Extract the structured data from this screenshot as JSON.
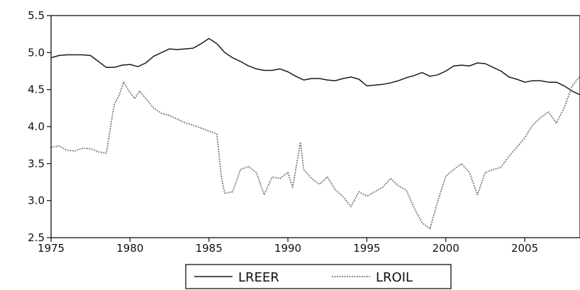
{
  "chart_data": {
    "type": "line",
    "title": "",
    "xlabel": "",
    "ylabel": "",
    "xlim": [
      1975,
      2008.5
    ],
    "ylim": [
      2.5,
      5.5
    ],
    "x_ticks": [
      "1975",
      "1980",
      "1985",
      "1990",
      "1995",
      "2000",
      "2005"
    ],
    "y_ticks": [
      "2.5",
      "3.0",
      "3.5",
      "4.0",
      "4.5",
      "5.0",
      "5.5"
    ],
    "grid": false,
    "legend": "bottom-center",
    "series": [
      {
        "name": "LREER",
        "style": "solid",
        "color": "#1a1a1a",
        "points": [
          [
            1975.0,
            4.93
          ],
          [
            1975.5,
            4.96
          ],
          [
            1976.0,
            4.97
          ],
          [
            1976.5,
            4.97
          ],
          [
            1977.0,
            4.97
          ],
          [
            1977.5,
            4.96
          ],
          [
            1978.0,
            4.88
          ],
          [
            1978.5,
            4.8
          ],
          [
            1979.0,
            4.8
          ],
          [
            1979.5,
            4.83
          ],
          [
            1980.0,
            4.84
          ],
          [
            1980.5,
            4.81
          ],
          [
            1981.0,
            4.86
          ],
          [
            1981.5,
            4.95
          ],
          [
            1982.0,
            5.0
          ],
          [
            1982.5,
            5.05
          ],
          [
            1983.0,
            5.04
          ],
          [
            1983.5,
            5.05
          ],
          [
            1984.0,
            5.06
          ],
          [
            1984.5,
            5.12
          ],
          [
            1985.0,
            5.19
          ],
          [
            1985.5,
            5.12
          ],
          [
            1986.0,
            5.0
          ],
          [
            1986.5,
            4.93
          ],
          [
            1987.0,
            4.88
          ],
          [
            1987.5,
            4.82
          ],
          [
            1988.0,
            4.78
          ],
          [
            1988.5,
            4.76
          ],
          [
            1989.0,
            4.76
          ],
          [
            1989.5,
            4.78
          ],
          [
            1990.0,
            4.74
          ],
          [
            1990.5,
            4.68
          ],
          [
            1991.0,
            4.63
          ],
          [
            1991.5,
            4.65
          ],
          [
            1992.0,
            4.65
          ],
          [
            1992.5,
            4.63
          ],
          [
            1993.0,
            4.62
          ],
          [
            1993.5,
            4.65
          ],
          [
            1994.0,
            4.67
          ],
          [
            1994.5,
            4.64
          ],
          [
            1995.0,
            4.55
          ],
          [
            1995.5,
            4.56
          ],
          [
            1996.0,
            4.57
          ],
          [
            1996.5,
            4.59
          ],
          [
            1997.0,
            4.62
          ],
          [
            1997.5,
            4.66
          ],
          [
            1998.0,
            4.69
          ],
          [
            1998.5,
            4.73
          ],
          [
            1999.0,
            4.68
          ],
          [
            1999.5,
            4.7
          ],
          [
            2000.0,
            4.75
          ],
          [
            2000.5,
            4.82
          ],
          [
            2001.0,
            4.83
          ],
          [
            2001.5,
            4.82
          ],
          [
            2002.0,
            4.86
          ],
          [
            2002.5,
            4.85
          ],
          [
            2003.0,
            4.8
          ],
          [
            2003.5,
            4.75
          ],
          [
            2004.0,
            4.67
          ],
          [
            2004.5,
            4.64
          ],
          [
            2005.0,
            4.6
          ],
          [
            2005.5,
            4.62
          ],
          [
            2006.0,
            4.62
          ],
          [
            2006.5,
            4.6
          ],
          [
            2007.0,
            4.6
          ],
          [
            2007.5,
            4.55
          ],
          [
            2008.0,
            4.48
          ],
          [
            2008.5,
            4.43
          ]
        ]
      },
      {
        "name": "LROIL",
        "style": "dotted",
        "color": "#7a7a7a",
        "points": [
          [
            1975.0,
            3.72
          ],
          [
            1975.5,
            3.74
          ],
          [
            1976.0,
            3.68
          ],
          [
            1976.5,
            3.67
          ],
          [
            1977.0,
            3.71
          ],
          [
            1977.5,
            3.7
          ],
          [
            1978.0,
            3.66
          ],
          [
            1978.5,
            3.64
          ],
          [
            1979.0,
            4.3
          ],
          [
            1979.3,
            4.42
          ],
          [
            1979.6,
            4.6
          ],
          [
            1980.0,
            4.46
          ],
          [
            1980.3,
            4.38
          ],
          [
            1980.6,
            4.48
          ],
          [
            1981.0,
            4.38
          ],
          [
            1981.5,
            4.25
          ],
          [
            1982.0,
            4.18
          ],
          [
            1982.5,
            4.15
          ],
          [
            1983.0,
            4.1
          ],
          [
            1983.5,
            4.05
          ],
          [
            1984.0,
            4.02
          ],
          [
            1984.5,
            3.98
          ],
          [
            1985.0,
            3.94
          ],
          [
            1985.5,
            3.9
          ],
          [
            1985.8,
            3.3
          ],
          [
            1986.0,
            3.1
          ],
          [
            1986.5,
            3.12
          ],
          [
            1987.0,
            3.42
          ],
          [
            1987.5,
            3.46
          ],
          [
            1988.0,
            3.38
          ],
          [
            1988.5,
            3.08
          ],
          [
            1989.0,
            3.32
          ],
          [
            1989.5,
            3.3
          ],
          [
            1990.0,
            3.38
          ],
          [
            1990.3,
            3.18
          ],
          [
            1990.8,
            3.79
          ],
          [
            1991.0,
            3.42
          ],
          [
            1991.5,
            3.3
          ],
          [
            1992.0,
            3.22
          ],
          [
            1992.5,
            3.32
          ],
          [
            1993.0,
            3.15
          ],
          [
            1993.5,
            3.05
          ],
          [
            1994.0,
            2.92
          ],
          [
            1994.5,
            3.12
          ],
          [
            1995.0,
            3.06
          ],
          [
            1995.5,
            3.12
          ],
          [
            1996.0,
            3.18
          ],
          [
            1996.5,
            3.3
          ],
          [
            1997.0,
            3.2
          ],
          [
            1997.5,
            3.14
          ],
          [
            1998.0,
            2.9
          ],
          [
            1998.5,
            2.7
          ],
          [
            1999.0,
            2.62
          ],
          [
            1999.5,
            3.0
          ],
          [
            2000.0,
            3.33
          ],
          [
            2000.5,
            3.42
          ],
          [
            2001.0,
            3.5
          ],
          [
            2001.5,
            3.38
          ],
          [
            2002.0,
            3.08
          ],
          [
            2002.5,
            3.38
          ],
          [
            2003.0,
            3.42
          ],
          [
            2003.5,
            3.45
          ],
          [
            2004.0,
            3.6
          ],
          [
            2004.5,
            3.72
          ],
          [
            2005.0,
            3.85
          ],
          [
            2005.5,
            4.02
          ],
          [
            2006.0,
            4.12
          ],
          [
            2006.5,
            4.2
          ],
          [
            2007.0,
            4.05
          ],
          [
            2007.5,
            4.25
          ],
          [
            2008.0,
            4.55
          ],
          [
            2008.5,
            4.68
          ]
        ]
      }
    ]
  }
}
